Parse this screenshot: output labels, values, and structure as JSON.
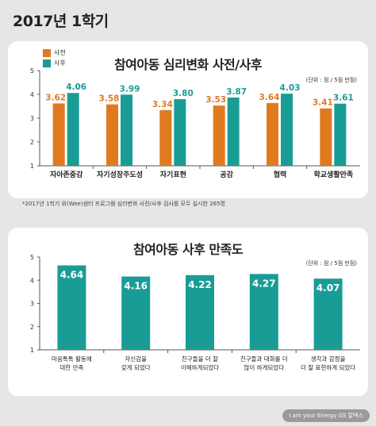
{
  "header": {
    "title": "2017년 1학기"
  },
  "colors": {
    "before": "#e07a1f",
    "after": "#1a9c96",
    "background": "#e6e6e6",
    "card": "#ffffff"
  },
  "chart1": {
    "title": "참여아동 심리변화 사전/사후",
    "unit": "(단위 : 점 / 5점 만점)",
    "legend": {
      "before": "사전",
      "after": "사후"
    },
    "footnote": "*2017년 1학기 위(Wee)센터 프로그램 심리변화 사전/사후 검사를 모두 실시한 265명"
  },
  "chart2": {
    "title": "참여아동 사후 만족도",
    "unit": "(단위 : 점 / 5점 만점)"
  },
  "footer": {
    "brand": "I am your Energy  GS 칼텍스"
  },
  "chart_data": [
    {
      "type": "bar",
      "title": "참여아동 심리변화 사전/사후",
      "categories": [
        "자아존중감",
        "자기성장주도성",
        "자기표현",
        "공감",
        "협력",
        "학교생활만족"
      ],
      "series": [
        {
          "name": "사전",
          "values": [
            3.62,
            3.58,
            3.34,
            3.53,
            3.64,
            3.41
          ]
        },
        {
          "name": "사후",
          "values": [
            4.06,
            3.99,
            3.8,
            3.87,
            4.03,
            3.61
          ]
        }
      ],
      "ylim": [
        1,
        5
      ],
      "yticks": [
        1,
        2,
        3,
        4,
        5
      ],
      "grid": false,
      "legend_position": "top-left",
      "xlabel": "",
      "ylabel": ""
    },
    {
      "type": "bar",
      "title": "참여아동 사후 만족도",
      "categories": [
        "마음톡톡 활동에\n대한 만족",
        "자신감을\n갖게 되었다",
        "친구들을 더 잘\n이해하게되었다",
        "친구들과 대화를 더\n많이 하게되었다",
        "생각과 감정을\n더 잘 표현하게 되었다"
      ],
      "values": [
        4.64,
        4.16,
        4.22,
        4.27,
        4.07
      ],
      "ylim": [
        1,
        5
      ],
      "yticks": [
        1,
        2,
        3,
        4,
        5
      ],
      "grid": false,
      "xlabel": "",
      "ylabel": ""
    }
  ]
}
